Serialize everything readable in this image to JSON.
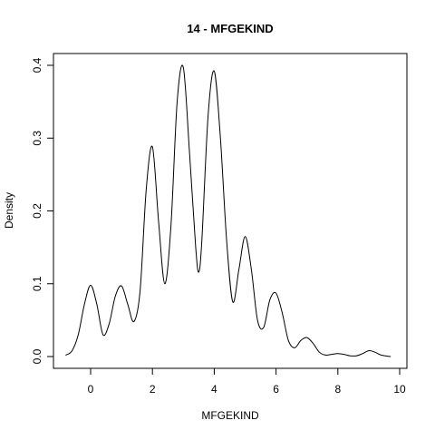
{
  "chart_data": {
    "type": "line",
    "title": "14 - MFGEKIND",
    "xlabel": "MFGEKIND",
    "ylabel": "Density",
    "xlim": [
      -1,
      10
    ],
    "ylim": [
      0,
      0.4
    ],
    "xticks": [
      0,
      2,
      4,
      6,
      8,
      10
    ],
    "yticks": [
      0.0,
      0.1,
      0.2,
      0.3,
      0.4
    ],
    "xtick_labels": [
      "0",
      "2",
      "4",
      "6",
      "8",
      "10"
    ],
    "ytick_labels": [
      "0.0",
      "0.1",
      "0.2",
      "0.3",
      "0.4"
    ],
    "grid": false,
    "legend": "none",
    "series": [
      {
        "x": [
          -0.8,
          -0.6,
          -0.4,
          -0.2,
          0.0,
          0.2,
          0.4,
          0.6,
          0.8,
          1.0,
          1.2,
          1.4,
          1.6,
          1.8,
          2.0,
          2.2,
          2.4,
          2.6,
          2.8,
          3.0,
          3.2,
          3.4,
          3.5,
          3.6,
          3.8,
          4.0,
          4.2,
          4.4,
          4.6,
          4.8,
          5.0,
          5.2,
          5.4,
          5.6,
          5.8,
          6.0,
          6.2,
          6.4,
          6.6,
          6.8,
          7.0,
          7.2,
          7.4,
          7.6,
          7.8,
          8.0,
          8.2,
          8.4,
          8.6,
          8.8,
          9.0,
          9.2,
          9.4,
          9.7
        ],
        "y": [
          0.002,
          0.008,
          0.03,
          0.072,
          0.098,
          0.072,
          0.03,
          0.045,
          0.083,
          0.097,
          0.072,
          0.048,
          0.09,
          0.23,
          0.288,
          0.185,
          0.1,
          0.18,
          0.35,
          0.397,
          0.28,
          0.15,
          0.116,
          0.16,
          0.33,
          0.392,
          0.3,
          0.16,
          0.075,
          0.12,
          0.165,
          0.12,
          0.05,
          0.04,
          0.078,
          0.087,
          0.06,
          0.022,
          0.012,
          0.022,
          0.026,
          0.018,
          0.006,
          0.002,
          0.003,
          0.004,
          0.003,
          0.001,
          0.001,
          0.004,
          0.008,
          0.006,
          0.002,
          0.0
        ]
      }
    ]
  }
}
